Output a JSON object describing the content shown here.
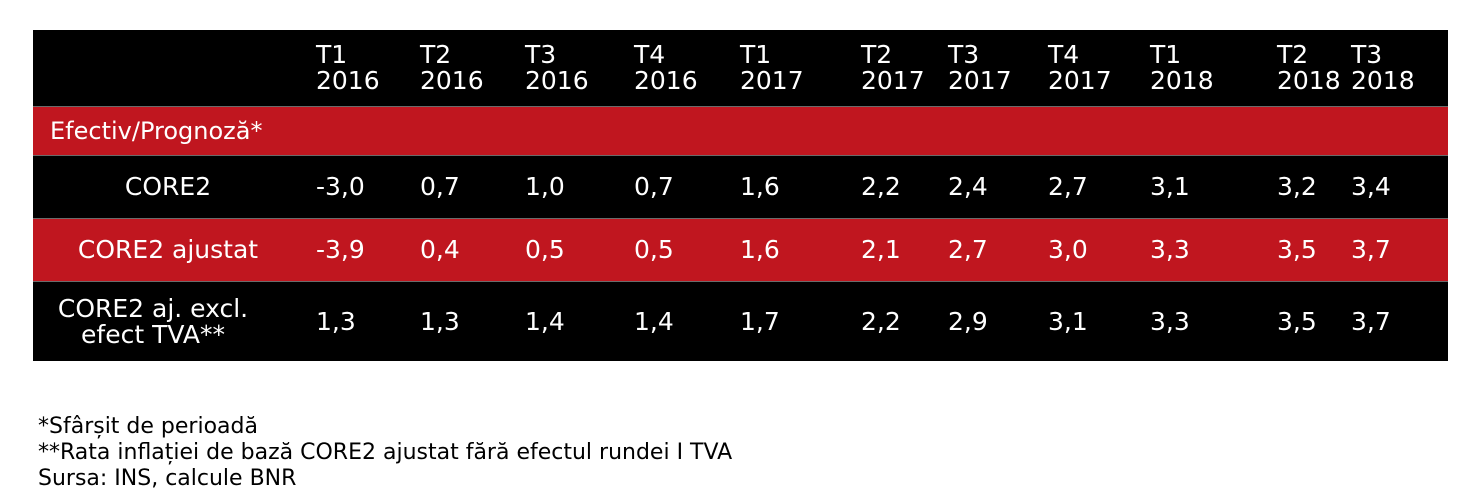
{
  "chart_data": {
    "type": "table",
    "columns": [
      {
        "q": "T1",
        "y": "2016"
      },
      {
        "q": "T2",
        "y": "2016"
      },
      {
        "q": "T3",
        "y": "2016"
      },
      {
        "q": "T4",
        "y": "2016"
      },
      {
        "q": "T1",
        "y": "2017"
      },
      {
        "q": "T2",
        "y": "2017"
      },
      {
        "q": "T3",
        "y": "2017"
      },
      {
        "q": "T4",
        "y": "2017"
      },
      {
        "q": "T1",
        "y": "2018"
      },
      {
        "q": "T2",
        "y": "2018"
      },
      {
        "q": "T3",
        "y": "2018"
      }
    ],
    "section_label": "Efectiv/Prognoză*",
    "rows": [
      {
        "label": "CORE2",
        "values": [
          "-3,0",
          "0,7",
          "1,0",
          "0,7",
          "1,6",
          "2,2",
          "2,4",
          "2,7",
          "3,1",
          "3,2",
          "3,4"
        ]
      },
      {
        "label": "CORE2 ajustat",
        "values": [
          "-3,9",
          "0,4",
          "0,5",
          "0,5",
          "1,6",
          "2,1",
          "2,7",
          "3,0",
          "3,3",
          "3,5",
          "3,7"
        ]
      },
      {
        "label": "CORE2 aj. excl. efect TVA**",
        "values": [
          "1,3",
          "1,3",
          "1,4",
          "1,4",
          "1,7",
          "2,2",
          "2,9",
          "3,1",
          "3,3",
          "3,5",
          "3,7"
        ]
      }
    ]
  },
  "footnotes": {
    "note1": "*Sfârșit de perioadă",
    "note2": "**Rata inflației de bază CORE2 ajustat fără efectul rundei I TVA",
    "source": "Sursa: INS, calcule BNR"
  },
  "colors": {
    "header_bg": "#000000",
    "accent": "#c0161f",
    "text": "#ffffff"
  }
}
